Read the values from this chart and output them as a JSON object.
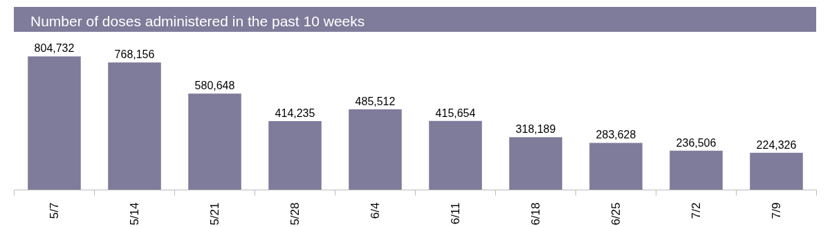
{
  "chart_data": {
    "type": "bar",
    "title": "Number of doses administered in the past 10 weeks",
    "categories": [
      "5/7",
      "5/14",
      "5/21",
      "5/28",
      "6/4",
      "6/11",
      "6/18",
      "6/25",
      "7/2",
      "7/9"
    ],
    "values": [
      804732,
      768156,
      580648,
      414235,
      485512,
      415654,
      318189,
      283628,
      236506,
      224326
    ],
    "value_labels": [
      "804,732",
      "768,156",
      "580,648",
      "414,235",
      "485,512",
      "415,654",
      "318,189",
      "283,628",
      "236,506",
      "224,326"
    ],
    "color": "#7f7b9a",
    "tick_labels": "x"
  }
}
